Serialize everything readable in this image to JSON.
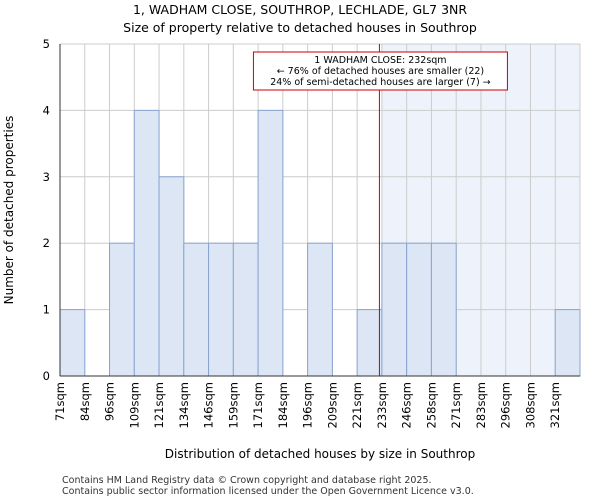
{
  "chart_data": {
    "type": "bar",
    "title": "1, WADHAM CLOSE, SOUTHROP, LECHLADE, GL7 3NR",
    "subtitle": "Size of property relative to detached houses in Southrop",
    "xlabel": "Distribution of detached houses by size in Southrop",
    "ylabel": "Number of detached properties",
    "categories": [
      "71sqm",
      "84sqm",
      "96sqm",
      "109sqm",
      "121sqm",
      "134sqm",
      "146sqm",
      "159sqm",
      "171sqm",
      "184sqm",
      "196sqm",
      "209sqm",
      "221sqm",
      "233sqm",
      "246sqm",
      "258sqm",
      "271sqm",
      "283sqm",
      "296sqm",
      "308sqm",
      "321sqm"
    ],
    "values": [
      1,
      0,
      2,
      4,
      3,
      2,
      2,
      2,
      4,
      0,
      2,
      0,
      1,
      2,
      2,
      2,
      0,
      0,
      0,
      0,
      1
    ],
    "ylim": [
      0,
      5
    ],
    "yticks": [
      0,
      1,
      2,
      3,
      4,
      5
    ],
    "grid": true,
    "marker": {
      "value_sqm": 232,
      "category_position": 12.9,
      "highlight_from_position": 13,
      "color": "#cc0000"
    },
    "annotation": {
      "lines": [
        "1 WADHAM CLOSE: 232sqm",
        "← 76% of detached houses are smaller (22)",
        "24% of semi-detached houses are larger (7) →"
      ]
    },
    "colors": {
      "bar_fill": "#dce6f5",
      "bar_stroke": "#8aa4d0",
      "highlight_region": "#eef2fb",
      "grid": "#cccccc",
      "axis": "#333333"
    }
  },
  "footer": {
    "line1": "Contains HM Land Registry data © Crown copyright and database right 2025.",
    "line2": "Contains public sector information licensed under the Open Government Licence v3.0."
  }
}
